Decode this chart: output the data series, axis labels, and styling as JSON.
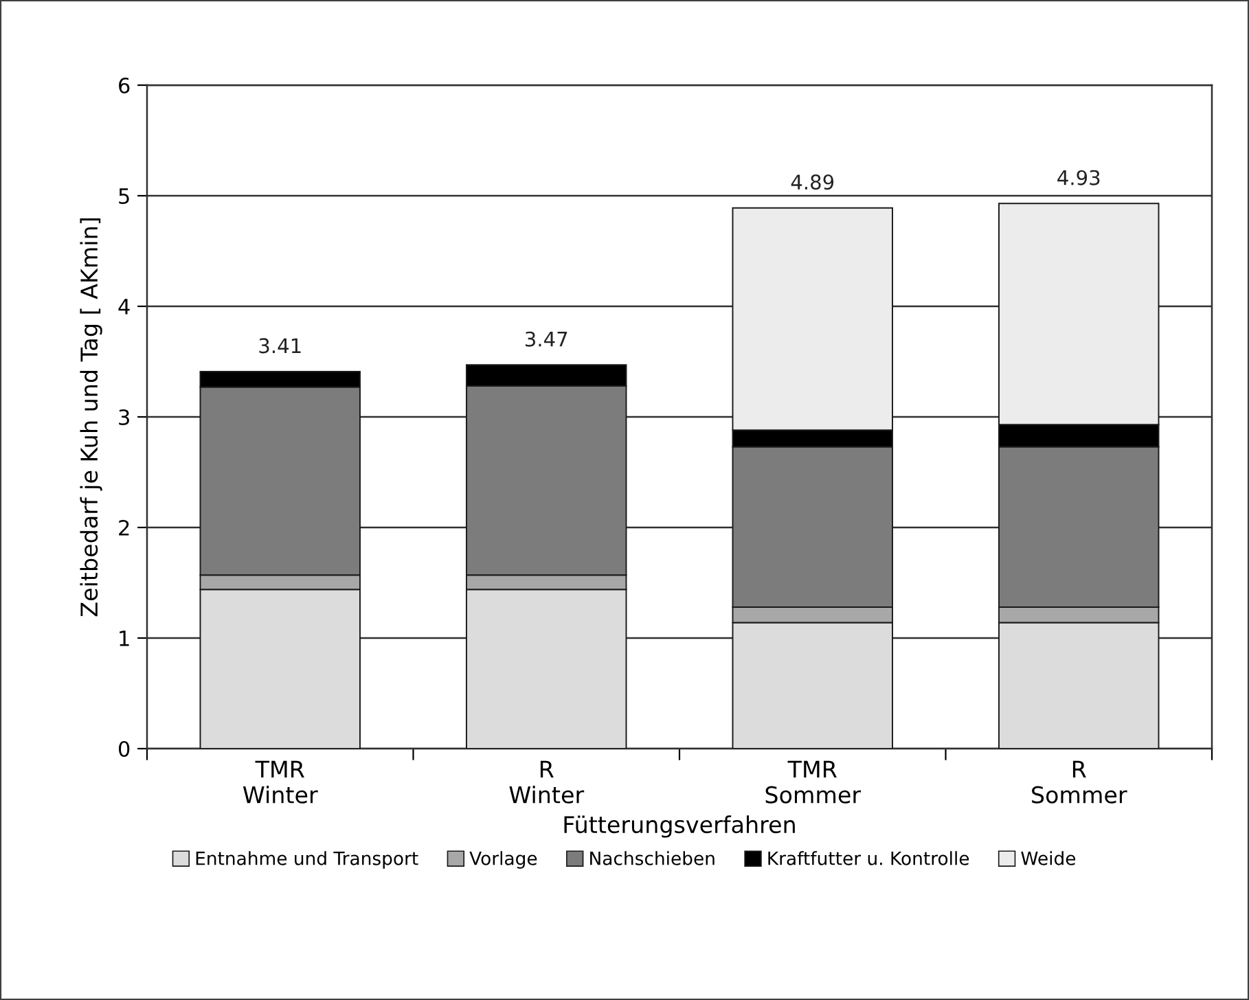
{
  "chart_data": {
    "type": "bar",
    "stacked": true,
    "xlabel": "Fütterungsverfahren",
    "ylabel": "Zeitbedarf je Kuh und Tag [ AKmin]",
    "categories": [
      "TMR\nWinter",
      "R\nWinter",
      "TMR\nSommer",
      "R\nSommer"
    ],
    "series": [
      {
        "name": "Entnahme und Transport",
        "color": "#dcdcdc",
        "values": [
          1.44,
          1.44,
          1.14,
          1.14
        ]
      },
      {
        "name": "Vorlage",
        "color": "#a8a8a8",
        "values": [
          0.13,
          0.13,
          0.14,
          0.14
        ]
      },
      {
        "name": "Nachschieben",
        "color": "#7c7c7c",
        "values": [
          1.7,
          1.71,
          1.45,
          1.45
        ]
      },
      {
        "name": "Kraftfutter u. Kontrolle",
        "color": "#000000",
        "values": [
          0.14,
          0.19,
          0.15,
          0.2
        ]
      },
      {
        "name": "Weide",
        "color": "#ececec",
        "values": [
          null,
          null,
          2.01,
          2.0
        ]
      }
    ],
    "totals": [
      "3.41",
      "3.47",
      "4.89",
      "4.93"
    ],
    "ylim": [
      0,
      6
    ],
    "yticks": [
      0,
      1,
      2,
      3,
      4,
      5,
      6
    ],
    "grid": "y",
    "legend": "bottom"
  }
}
